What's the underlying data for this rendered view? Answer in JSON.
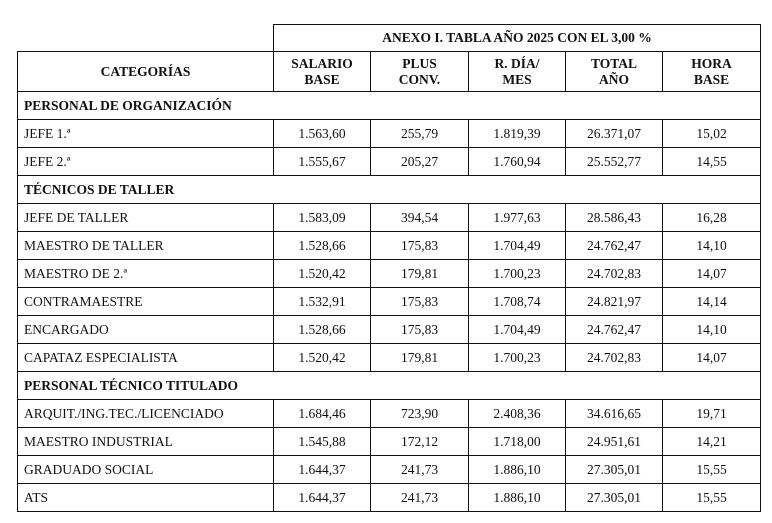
{
  "table": {
    "title": "ANEXO I. TABLA AÑO 2025 CON EL 3,00 %",
    "headers": {
      "category": "CATEGORÍAS",
      "salario_base": [
        "SALARIO",
        "BASE"
      ],
      "plus_conv": [
        "PLUS",
        "CONV."
      ],
      "r_dia_mes": [
        "R. DÍA/",
        "MES"
      ],
      "total_ano": [
        "TOTAL",
        "AÑO"
      ],
      "hora_base": [
        "HORA",
        "BASE"
      ]
    },
    "sections": [
      {
        "name": "PERSONAL DE ORGANIZACIÓN",
        "rows": [
          [
            "JEFE 1.ª",
            "1.563,60",
            "255,79",
            "1.819,39",
            "26.371,07",
            "15,02"
          ],
          [
            "JEFE 2.ª",
            "1.555,67",
            "205,27",
            "1.760,94",
            "25.552,77",
            "14,55"
          ]
        ]
      },
      {
        "name": "TÉCNICOS DE TALLER",
        "rows": [
          [
            "JEFE DE TALLER",
            "1.583,09",
            "394,54",
            "1.977,63",
            "28.586,43",
            "16,28"
          ],
          [
            "MAESTRO DE TALLER",
            "1.528,66",
            "175,83",
            "1.704,49",
            "24.762,47",
            "14,10"
          ],
          [
            "MAESTRO DE 2.ª",
            "1.520,42",
            "179,81",
            "1.700,23",
            "24.702,83",
            "14,07"
          ],
          [
            "CONTRAMAESTRE",
            "1.532,91",
            "175,83",
            "1.708,74",
            "24.821,97",
            "14,14"
          ],
          [
            "ENCARGADO",
            "1.528,66",
            "175,83",
            "1.704,49",
            "24.762,47",
            "14,10"
          ],
          [
            "CAPATAZ ESPECIALISTA",
            "1.520,42",
            "179,81",
            "1.700,23",
            "24.702,83",
            "14,07"
          ]
        ]
      },
      {
        "name": "PERSONAL TÉCNICO TITULADO",
        "rows": [
          [
            "ARQUIT./ING.TEC./LICENCIADO",
            "1.684,46",
            "723,90",
            "2.408,36",
            "34.616,65",
            "19,71"
          ],
          [
            "MAESTRO INDUSTRIAL",
            "1.545,88",
            "172,12",
            "1.718,00",
            "24.951,61",
            "14,21"
          ],
          [
            "GRADUADO SOCIAL",
            "1.644,37",
            "241,73",
            "1.886,10",
            "27.305,01",
            "15,55"
          ],
          [
            "ATS",
            "1.644,37",
            "241,73",
            "1.886,10",
            "27.305,01",
            "15,55"
          ]
        ]
      }
    ]
  }
}
